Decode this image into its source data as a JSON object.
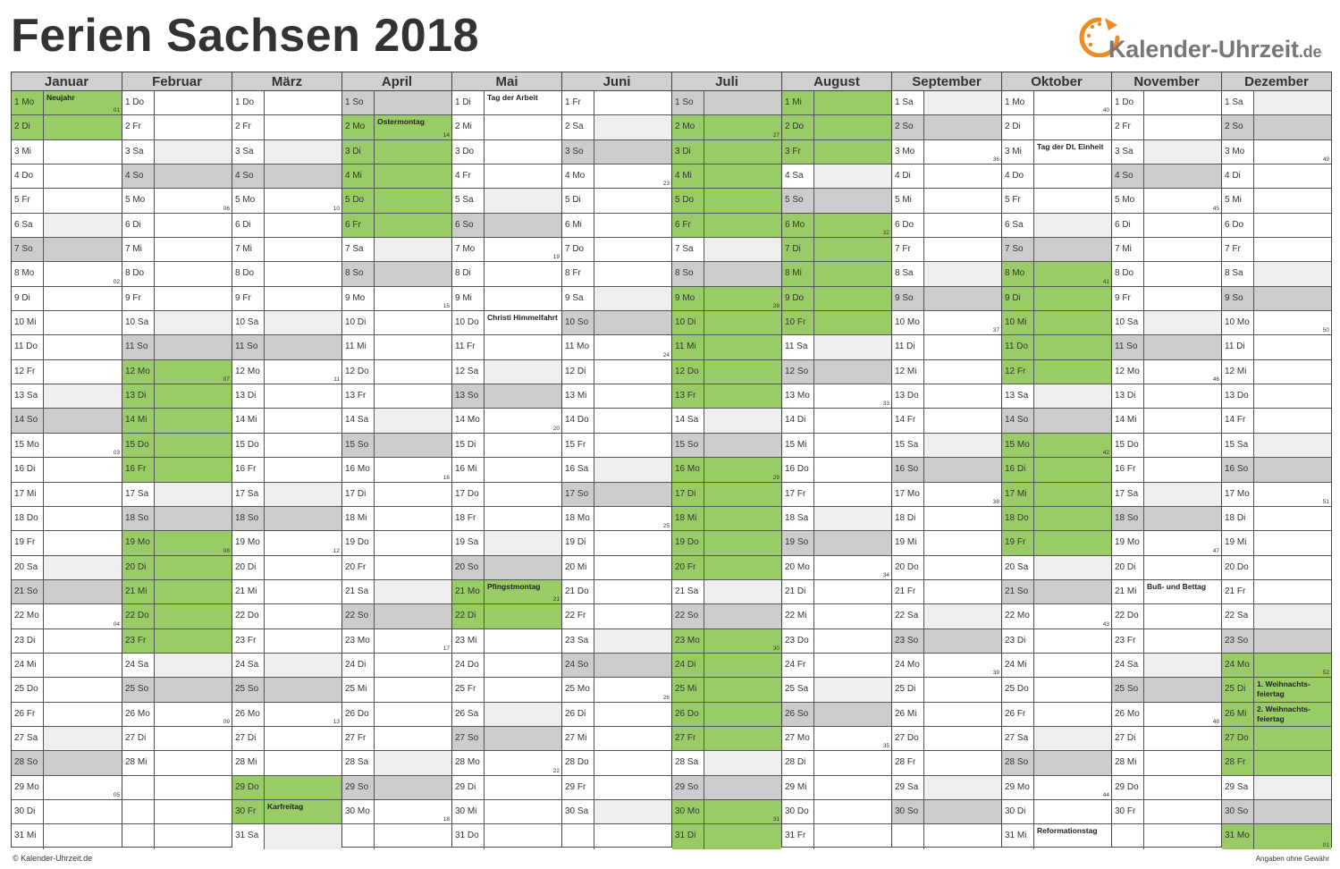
{
  "title": "Ferien Sachsen 2018",
  "logo": {
    "name": "Kalender-Uhrzeit",
    "tld": ".de"
  },
  "footer_left": "© Kalender-Uhrzeit.de",
  "footer_right": "Angaben ohne Gewähr",
  "colors": {
    "holiday": "#99cc66",
    "weekend": "#cccccc",
    "saturday_light": "#eeeeee",
    "logo_orange": "#f08a24"
  },
  "months": [
    {
      "name": "Januar",
      "start_wd": 0,
      "days": 31,
      "green": [
        1,
        2
      ],
      "holidays": {
        "1": "Neujahr"
      },
      "weeks": {
        "1": "01",
        "8": "02",
        "15": "03",
        "22": "04",
        "29": "05"
      }
    },
    {
      "name": "Februar",
      "start_wd": 3,
      "days": 28,
      "green": [
        12,
        13,
        14,
        15,
        16,
        19,
        20,
        21,
        22,
        23
      ],
      "holidays": {},
      "weeks": {
        "5": "06",
        "12": "07",
        "19": "08",
        "26": "09"
      }
    },
    {
      "name": "März",
      "start_wd": 3,
      "days": 31,
      "green": [
        29,
        30
      ],
      "holidays": {
        "30": "Karfreitag"
      },
      "weeks": {
        "5": "10",
        "12": "11",
        "19": "12",
        "26": "13"
      }
    },
    {
      "name": "April",
      "start_wd": 6,
      "days": 30,
      "green": [
        2,
        3,
        4,
        5,
        6
      ],
      "holidays": {
        "2": "Ostermontag"
      },
      "weeks": {
        "2": "14",
        "9": "15",
        "16": "16",
        "23": "17",
        "30": "18"
      }
    },
    {
      "name": "Mai",
      "start_wd": 1,
      "days": 31,
      "green": [
        21,
        22
      ],
      "holidays": {
        "1": "Tag der Arbeit",
        "10": "Christi Himmelfahrt",
        "21": "Pfingstmontag"
      },
      "weeks": {
        "7": "19",
        "14": "20",
        "21": "21",
        "28": "22"
      }
    },
    {
      "name": "Juni",
      "start_wd": 4,
      "days": 30,
      "green": [],
      "holidays": {},
      "weeks": {
        "4": "23",
        "11": "24",
        "18": "25",
        "25": "26"
      }
    },
    {
      "name": "Juli",
      "start_wd": 6,
      "days": 31,
      "green": [
        2,
        3,
        4,
        5,
        6,
        9,
        10,
        11,
        12,
        13,
        16,
        17,
        18,
        19,
        20,
        23,
        24,
        25,
        26,
        27,
        30,
        31
      ],
      "holidays": {},
      "weeks": {
        "2": "27",
        "9": "28",
        "16": "29",
        "23": "30",
        "30": "31"
      }
    },
    {
      "name": "August",
      "start_wd": 2,
      "days": 31,
      "green": [
        1,
        2,
        3,
        6,
        7,
        8,
        9,
        10
      ],
      "holidays": {},
      "weeks": {
        "6": "32",
        "13": "33",
        "20": "34",
        "27": "35"
      }
    },
    {
      "name": "September",
      "start_wd": 5,
      "days": 30,
      "green": [],
      "holidays": {},
      "weeks": {
        "3": "36",
        "10": "37",
        "17": "38",
        "24": "39"
      }
    },
    {
      "name": "Oktober",
      "start_wd": 0,
      "days": 31,
      "green": [
        8,
        9,
        10,
        11,
        12,
        15,
        16,
        17,
        18,
        19
      ],
      "holidays": {
        "3": "Tag der Dt. Einheit",
        "31": "Reformationstag"
      },
      "weeks": {
        "1": "40",
        "8": "41",
        "15": "42",
        "22": "43",
        "29": "44"
      }
    },
    {
      "name": "November",
      "start_wd": 3,
      "days": 30,
      "green": [],
      "holidays": {
        "21": "Buß- und Bettag"
      },
      "weeks": {
        "5": "45",
        "12": "46",
        "19": "47",
        "26": "48"
      }
    },
    {
      "name": "Dezember",
      "start_wd": 5,
      "days": 31,
      "green": [
        24,
        25,
        26,
        27,
        28,
        31
      ],
      "holidays": {
        "25": "1. Weihnachts-feiertag",
        "26": "2. Weihnachts-feiertag"
      },
      "weeks": {
        "3": "49",
        "10": "50",
        "17": "51",
        "24": "52",
        "31": "01"
      }
    }
  ],
  "weekday_abbr": [
    "Mo",
    "Di",
    "Mi",
    "Do",
    "Fr",
    "Sa",
    "So"
  ]
}
